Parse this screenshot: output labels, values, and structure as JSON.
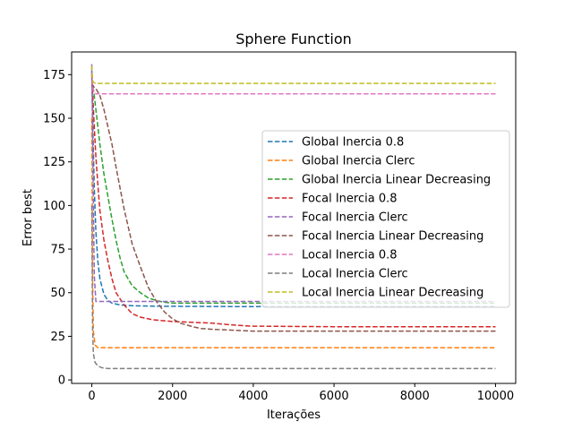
{
  "chart_data": {
    "type": "line",
    "title": "Sphere Function",
    "xlabel": "Iterações",
    "ylabel": "Error best",
    "xlim": [
      -500,
      10500
    ],
    "ylim": [
      -2,
      188
    ],
    "xticks": [
      0,
      2000,
      4000,
      6000,
      8000,
      10000
    ],
    "yticks": [
      0,
      25,
      50,
      75,
      100,
      125,
      150,
      175
    ],
    "grid": false,
    "legend_position": "center-right",
    "line_style": "dashed",
    "series": [
      {
        "name": "Global Inercia 0.8",
        "color": "#1f77b4",
        "x": [
          0,
          30,
          60,
          100,
          150,
          200,
          300,
          400,
          500,
          700,
          1000,
          1500,
          2000,
          3000,
          4000,
          6000,
          8000,
          10000
        ],
        "y": [
          178,
          140,
          110,
          85,
          68,
          58,
          49,
          45.5,
          44,
          43,
          42.5,
          42.3,
          42.2,
          42.1,
          42,
          42,
          42,
          42
        ]
      },
      {
        "name": "Global Inercia Clerc",
        "color": "#ff7f0e",
        "x": [
          0,
          20,
          40,
          80,
          150,
          300,
          1000,
          5000,
          10000
        ],
        "y": [
          150,
          60,
          28,
          20,
          18.5,
          18.5,
          18.5,
          18.5,
          18.5
        ]
      },
      {
        "name": "Global Inercia Linear Decreasing",
        "color": "#2ca02c",
        "x": [
          0,
          50,
          100,
          200,
          300,
          400,
          500,
          600,
          700,
          800,
          900,
          1000,
          1200,
          1400,
          1600,
          1800,
          2000,
          2500,
          3000,
          4000,
          6000,
          8000,
          10000
        ],
        "y": [
          172,
          165,
          155,
          135,
          118,
          105,
          92,
          80,
          70,
          62,
          58,
          54,
          50,
          47,
          45.5,
          44.5,
          44,
          44,
          44,
          44,
          44,
          44,
          44
        ]
      },
      {
        "name": "Focal Inercia 0.8",
        "color": "#d62728",
        "x": [
          0,
          30,
          60,
          100,
          150,
          200,
          300,
          400,
          500,
          600,
          800,
          1000,
          1200,
          1500,
          2000,
          2500,
          3000,
          3500,
          3800,
          4000,
          6000,
          8000,
          10000
        ],
        "y": [
          175,
          160,
          145,
          128,
          112,
          97,
          80,
          68,
          58,
          50,
          43,
          38,
          36,
          34.5,
          33.5,
          33,
          32.5,
          31.5,
          31,
          30.8,
          30.5,
          30.5,
          30.5
        ]
      },
      {
        "name": "Focal Inercia Clerc",
        "color": "#9467bd",
        "x": [
          0,
          30,
          60,
          100,
          500,
          1000,
          4000,
          10000
        ],
        "y": [
          181,
          120,
          60,
          45,
          45,
          45,
          45,
          45
        ]
      },
      {
        "name": "Focal Inercia Linear Decreasing",
        "color": "#8c564b",
        "x": [
          0,
          50,
          100,
          200,
          300,
          400,
          500,
          600,
          700,
          800,
          900,
          1000,
          1200,
          1400,
          1600,
          1800,
          2000,
          2200,
          2500,
          2700,
          3000,
          3500,
          4000,
          6000,
          8000,
          10000
        ],
        "y": [
          170,
          168,
          167,
          163,
          155,
          145,
          135,
          122,
          110,
          98,
          88,
          78,
          65,
          53,
          45,
          39,
          35,
          32.5,
          30.5,
          29.5,
          29,
          28.5,
          28,
          28,
          28,
          28
        ]
      },
      {
        "name": "Local Inercia 0.8",
        "color": "#e377c2",
        "x": [
          0,
          20,
          50,
          100,
          500,
          2000,
          10000
        ],
        "y": [
          180,
          168,
          164.5,
          164,
          164,
          164,
          164
        ]
      },
      {
        "name": "Local Inercia Clerc",
        "color": "#7f7f7f",
        "x": [
          0,
          20,
          40,
          80,
          150,
          250,
          400,
          1000,
          5000,
          10000
        ],
        "y": [
          100,
          30,
          15,
          10,
          8,
          7,
          6.5,
          6.5,
          6.5,
          6.5
        ]
      },
      {
        "name": "Local Inercia Linear Decreasing",
        "color": "#bcbd22",
        "x": [
          0,
          20,
          40,
          100,
          500,
          2000,
          10000
        ],
        "y": [
          180,
          172,
          170.5,
          170,
          170,
          170,
          170
        ]
      }
    ]
  }
}
